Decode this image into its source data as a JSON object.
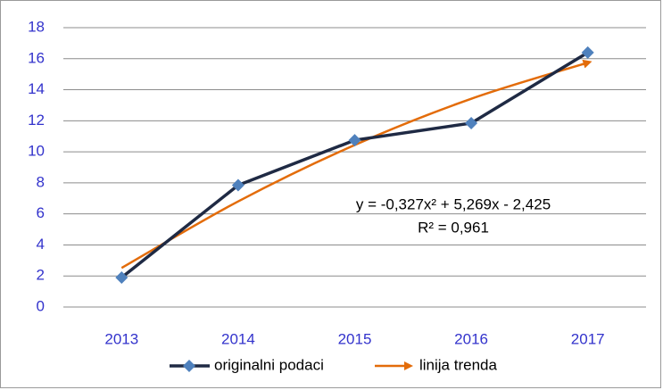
{
  "chart_data": {
    "type": "line",
    "categories": [
      "2013",
      "2014",
      "2015",
      "2016",
      "2017"
    ],
    "series": [
      {
        "name": "originalni podaci",
        "color": "#1f2a44",
        "marker_color": "#4f81bd",
        "values": [
          1.9,
          7.85,
          10.75,
          11.85,
          16.4
        ]
      },
      {
        "name": "linija trenda",
        "color": "#e36c0a",
        "values": [
          2.517,
          6.805,
          10.439,
          13.419,
          15.745
        ]
      }
    ],
    "annotations": [
      "y = -0,327x² + 5,269x - 2,425",
      "R² = 0,961"
    ],
    "ylim": [
      0,
      18
    ],
    "yticks": [
      0,
      2,
      4,
      6,
      8,
      10,
      12,
      14,
      16,
      18
    ],
    "grid": true,
    "legend": "bottom"
  }
}
